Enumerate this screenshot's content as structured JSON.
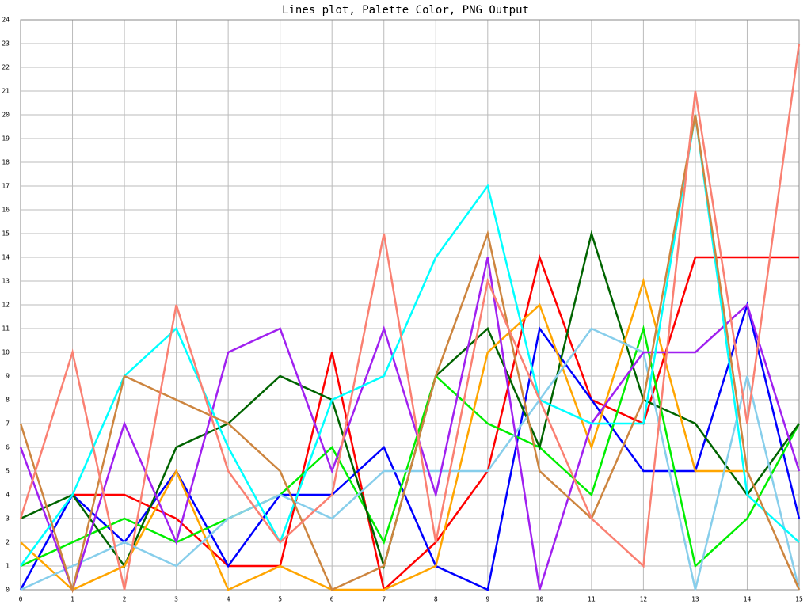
{
  "chart_data": {
    "type": "line",
    "title": "Lines plot, Palette Color, PNG Output",
    "x": [
      0,
      1,
      2,
      3,
      4,
      5,
      6,
      7,
      8,
      9,
      10,
      11,
      12,
      13,
      14,
      15
    ],
    "xlim": [
      0,
      15
    ],
    "xticks": [
      0,
      1,
      2,
      3,
      4,
      5,
      6,
      7,
      8,
      9,
      10,
      11,
      12,
      13,
      14,
      15
    ],
    "ylim": [
      0,
      24
    ],
    "yticks": [
      0,
      1,
      2,
      3,
      4,
      5,
      6,
      7,
      8,
      9,
      10,
      11,
      12,
      13,
      14,
      15,
      16,
      17,
      18,
      19,
      20,
      21,
      22,
      23,
      24
    ],
    "grid": true,
    "series": [
      {
        "color": "#ff0000",
        "values": [
          null,
          4,
          4,
          3,
          1,
          1,
          10,
          0,
          2,
          5,
          14,
          8,
          7,
          14,
          14,
          14
        ]
      },
      {
        "color": "#0000ff",
        "values": [
          0,
          4,
          2,
          5,
          1,
          4,
          4,
          6,
          1,
          0,
          11,
          8,
          5,
          5,
          12,
          3
        ]
      },
      {
        "color": "#00ee00",
        "values": [
          1,
          2,
          3,
          2,
          3,
          4,
          6,
          2,
          9,
          7,
          6,
          4,
          11,
          1,
          3,
          7
        ]
      },
      {
        "color": "#006400",
        "values": [
          3,
          4,
          1,
          6,
          7,
          9,
          8,
          1,
          9,
          11,
          6,
          15,
          8,
          7,
          4,
          7
        ]
      },
      {
        "color": "#ffa500",
        "values": [
          2,
          0,
          1,
          5,
          0,
          1,
          0,
          0,
          1,
          10,
          12,
          6,
          13,
          5,
          5,
          null
        ]
      },
      {
        "color": "#87ceeb",
        "values": [
          0,
          1,
          2,
          1,
          3,
          4,
          3,
          5,
          5,
          5,
          8,
          11,
          10,
          0,
          9,
          0
        ]
      },
      {
        "color": "#a020f0",
        "values": [
          6,
          0,
          7,
          2,
          10,
          11,
          5,
          11,
          4,
          14,
          0,
          7,
          10,
          10,
          12,
          5
        ]
      },
      {
        "color": "#00ffff",
        "values": [
          1,
          4,
          9,
          11,
          6,
          2,
          8,
          9,
          14,
          17,
          8,
          7,
          7,
          20,
          4,
          2
        ]
      },
      {
        "color": "#cd853f",
        "values": [
          7,
          0,
          9,
          8,
          7,
          5,
          0,
          1,
          9,
          15,
          5,
          3,
          8,
          20,
          5,
          0
        ]
      },
      {
        "color": "#fa8072",
        "values": [
          3,
          10,
          0,
          12,
          5,
          2,
          4,
          15,
          2,
          13,
          8,
          3,
          1,
          21,
          7,
          23
        ]
      }
    ]
  }
}
